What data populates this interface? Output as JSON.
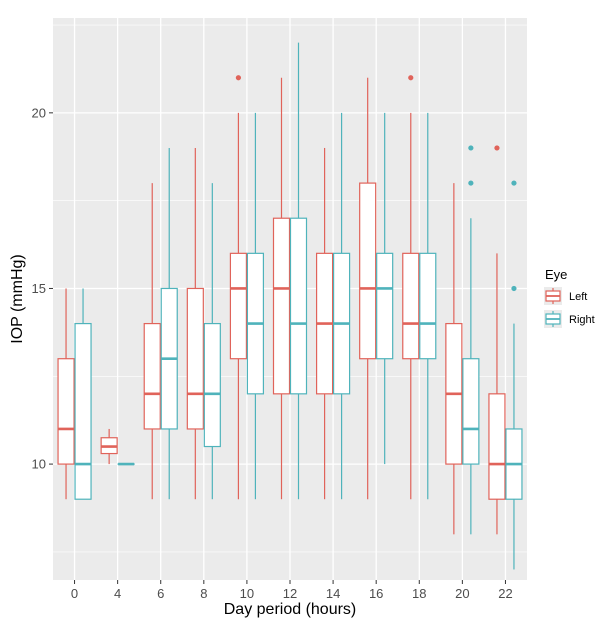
{
  "chart_data": {
    "type": "boxplot",
    "xlabel": "Day period (hours)",
    "ylabel": "IOP (mmHg)",
    "ylim": [
      6.7,
      22.7
    ],
    "yticks": [
      10,
      15,
      20
    ],
    "grid": true,
    "legend": {
      "title": "Eye",
      "position": "right"
    },
    "categories": [
      "0",
      "4",
      "6",
      "8",
      "10",
      "12",
      "14",
      "16",
      "18",
      "20",
      "22"
    ],
    "series": [
      {
        "name": "Left",
        "color": "#e0635a",
        "boxes": [
          {
            "lower_whisker": 9,
            "q1": 10,
            "median": 11,
            "q3": 13,
            "upper_whisker": 15,
            "outliers": []
          },
          {
            "lower_whisker": 10,
            "q1": 10.3,
            "median": 10.5,
            "q3": 10.75,
            "upper_whisker": 11,
            "outliers": []
          },
          {
            "lower_whisker": 9,
            "q1": 11,
            "median": 12,
            "q3": 14,
            "upper_whisker": 18,
            "outliers": []
          },
          {
            "lower_whisker": 9,
            "q1": 11,
            "median": 12,
            "q3": 15,
            "upper_whisker": 19,
            "outliers": []
          },
          {
            "lower_whisker": 9,
            "q1": 13,
            "median": 15,
            "q3": 16,
            "upper_whisker": 20,
            "outliers": [
              21
            ]
          },
          {
            "lower_whisker": 9,
            "q1": 12,
            "median": 15,
            "q3": 17,
            "upper_whisker": 21,
            "outliers": []
          },
          {
            "lower_whisker": 9,
            "q1": 12,
            "median": 14,
            "q3": 16,
            "upper_whisker": 19,
            "outliers": []
          },
          {
            "lower_whisker": 9,
            "q1": 13,
            "median": 15,
            "q3": 18,
            "upper_whisker": 21,
            "outliers": []
          },
          {
            "lower_whisker": 9,
            "q1": 13,
            "median": 14,
            "q3": 16,
            "upper_whisker": 20,
            "outliers": [
              21
            ]
          },
          {
            "lower_whisker": 8,
            "q1": 10,
            "median": 12,
            "q3": 14,
            "upper_whisker": 18,
            "outliers": []
          },
          {
            "lower_whisker": 8,
            "q1": 9,
            "median": 10,
            "q3": 12,
            "upper_whisker": 16,
            "outliers": [
              19
            ]
          }
        ]
      },
      {
        "name": "Right",
        "color": "#4fb3bb",
        "boxes": [
          {
            "lower_whisker": 9,
            "q1": 9,
            "median": 10,
            "q3": 14,
            "upper_whisker": 15,
            "outliers": []
          },
          {
            "lower_whisker": 10,
            "q1": 10,
            "median": 10,
            "q3": 10,
            "upper_whisker": 10,
            "outliers": []
          },
          {
            "lower_whisker": 9,
            "q1": 11,
            "median": 13,
            "q3": 15,
            "upper_whisker": 19,
            "outliers": []
          },
          {
            "lower_whisker": 9,
            "q1": 10.5,
            "median": 12,
            "q3": 14,
            "upper_whisker": 18,
            "outliers": []
          },
          {
            "lower_whisker": 9,
            "q1": 12,
            "median": 14,
            "q3": 16,
            "upper_whisker": 20,
            "outliers": []
          },
          {
            "lower_whisker": 9,
            "q1": 12,
            "median": 14,
            "q3": 17,
            "upper_whisker": 22,
            "outliers": []
          },
          {
            "lower_whisker": 9,
            "q1": 12,
            "median": 14,
            "q3": 16,
            "upper_whisker": 20,
            "outliers": []
          },
          {
            "lower_whisker": 10,
            "q1": 13,
            "median": 15,
            "q3": 16,
            "upper_whisker": 20,
            "outliers": []
          },
          {
            "lower_whisker": 9,
            "q1": 13,
            "median": 14,
            "q3": 16,
            "upper_whisker": 20,
            "outliers": []
          },
          {
            "lower_whisker": 8,
            "q1": 10,
            "median": 11,
            "q3": 13,
            "upper_whisker": 17,
            "outliers": [
              18,
              19
            ]
          },
          {
            "lower_whisker": 7,
            "q1": 9,
            "median": 10,
            "q3": 11,
            "upper_whisker": 14,
            "outliers": [
              15,
              18
            ]
          }
        ]
      }
    ]
  }
}
